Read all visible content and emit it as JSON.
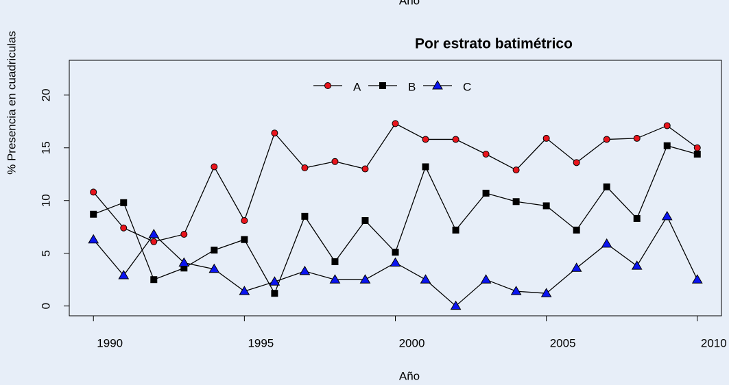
{
  "header_text": "Año",
  "chart_data": {
    "type": "line",
    "title": "Por estrato batimétrico",
    "x_label": "Año",
    "y_label": "% Presencia en cuadriculas",
    "x": [
      1990,
      1991,
      1992,
      1993,
      1994,
      1995,
      1996,
      1997,
      1998,
      1999,
      2000,
      2001,
      2002,
      2003,
      2004,
      2005,
      2006,
      2007,
      2008,
      2009,
      2010
    ],
    "series": [
      {
        "name": "A",
        "color": "#e8141c",
        "marker": "circle",
        "values": [
          10.8,
          7.4,
          6.1,
          6.8,
          13.2,
          8.1,
          16.4,
          13.1,
          13.7,
          13.0,
          17.3,
          15.8,
          15.8,
          14.4,
          12.9,
          15.9,
          13.6,
          15.8,
          15.9,
          17.1,
          15.0
        ]
      },
      {
        "name": "B",
        "color": "#000000",
        "marker": "square",
        "values": [
          8.7,
          9.8,
          2.5,
          3.6,
          5.3,
          6.3,
          1.2,
          8.5,
          4.2,
          8.1,
          5.1,
          13.2,
          7.2,
          10.7,
          9.9,
          9.5,
          7.2,
          11.3,
          8.3,
          15.2,
          14.4
        ]
      },
      {
        "name": "C",
        "color": "#0a14f0",
        "marker": "triangle",
        "values": [
          6.3,
          2.9,
          6.8,
          4.1,
          3.5,
          1.4,
          2.3,
          3.3,
          2.5,
          2.5,
          4.1,
          2.5,
          0,
          2.5,
          1.4,
          1.2,
          3.6,
          5.9,
          3.8,
          8.5,
          2.5
        ]
      }
    ],
    "xlim": [
      1989.2,
      2010.8
    ],
    "xticks": [
      1990,
      1995,
      2000,
      2005,
      2010
    ],
    "ylim": [
      -0.93,
      23.3
    ],
    "yticks": [
      0,
      5,
      10,
      15,
      20
    ],
    "legend": "top"
  }
}
